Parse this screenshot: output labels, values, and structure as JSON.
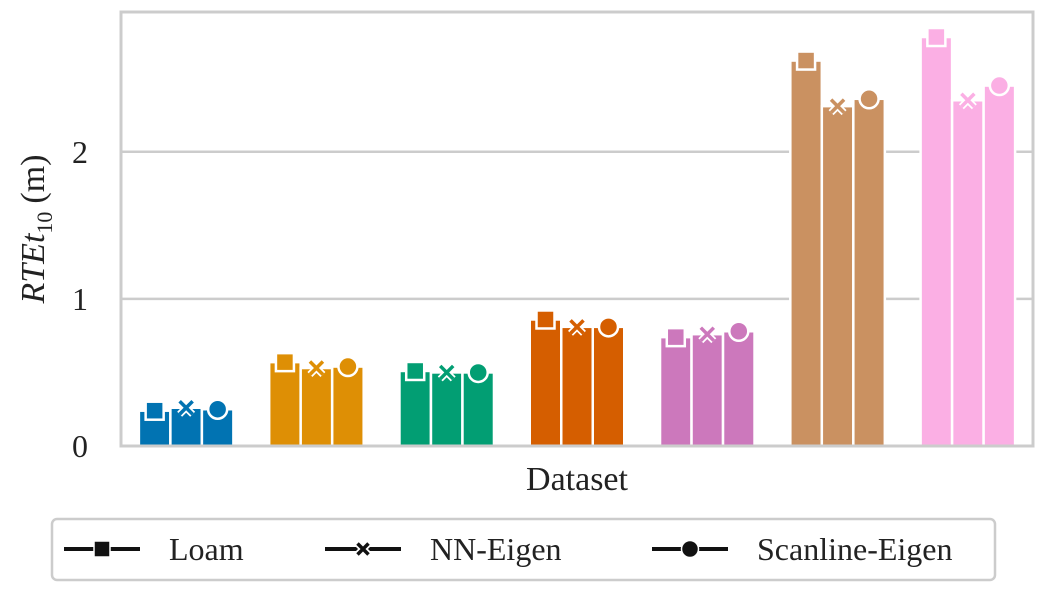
{
  "chart_data": {
    "type": "bar",
    "xlabel": "Dataset",
    "ylabel_main": "RTE",
    "ylabel_italic_t": "t",
    "ylabel_sub": "10",
    "ylabel_unit": "(m)",
    "ylim": [
      0,
      2.95
    ],
    "yticks": [
      0,
      1,
      2
    ],
    "grid": true,
    "legend_position": "bottom",
    "methods": [
      "Loam",
      "NN-Eigen",
      "Scanline-Eigen"
    ],
    "method_markers": [
      "square",
      "x",
      "circle"
    ],
    "groups": [
      {
        "color": "#0173b2",
        "values": [
          0.24,
          0.26,
          0.25
        ]
      },
      {
        "color": "#de8f05",
        "values": [
          0.57,
          0.53,
          0.54
        ]
      },
      {
        "color": "#029e73",
        "values": [
          0.51,
          0.5,
          0.5
        ]
      },
      {
        "color": "#d55e00",
        "values": [
          0.86,
          0.81,
          0.81
        ]
      },
      {
        "color": "#cc78bc",
        "values": [
          0.74,
          0.76,
          0.78
        ]
      },
      {
        "color": "#ca9161",
        "values": [
          2.62,
          2.31,
          2.36
        ]
      },
      {
        "color": "#fbafe4",
        "values": [
          2.78,
          2.35,
          2.45
        ]
      }
    ]
  }
}
